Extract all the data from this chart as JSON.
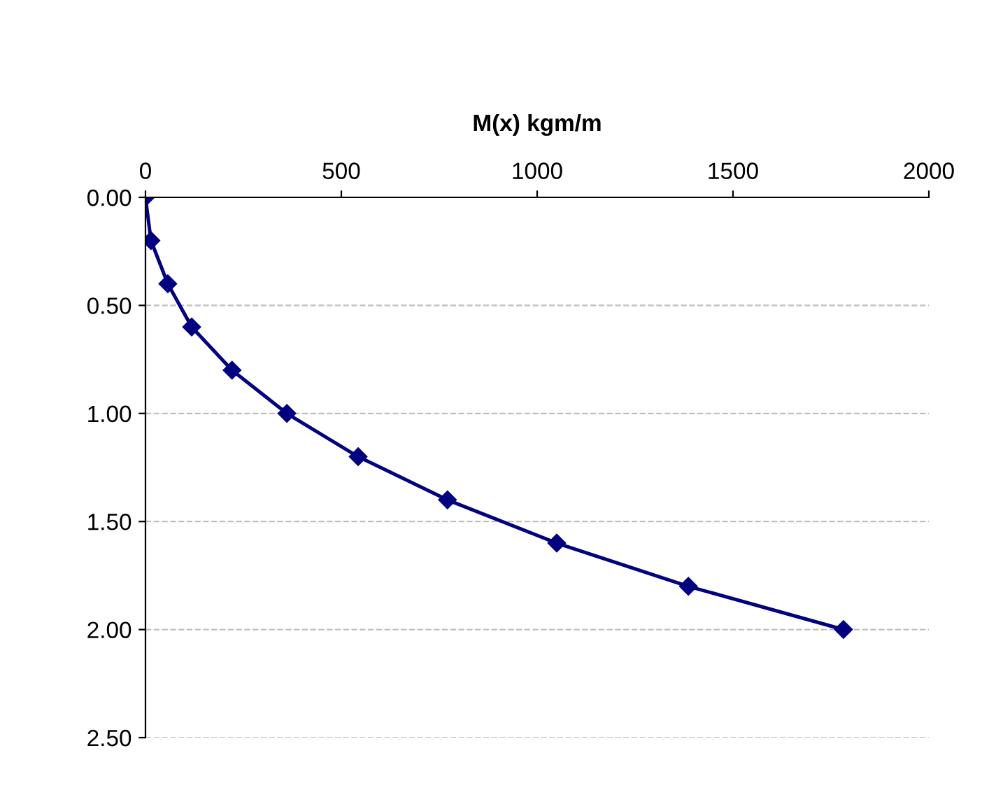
{
  "chart_data": {
    "type": "line",
    "xlabel": "M(x) kgm/m",
    "xlim": [
      0,
      2000
    ],
    "xticks": [
      0,
      500,
      1000,
      1500,
      2000
    ],
    "ylim": [
      2.5,
      0
    ],
    "yticks": [
      {
        "value": 0,
        "label": "0.00"
      },
      {
        "value": 0.5,
        "label": "0.50"
      },
      {
        "value": 1,
        "label": "1.00"
      },
      {
        "value": 1.5,
        "label": "1.50"
      },
      {
        "value": 2,
        "label": "2.00"
      },
      {
        "value": 2.5,
        "label": "2.50"
      }
    ],
    "grid": "y",
    "marker": "diamond",
    "line_style": "solid",
    "series": [
      {
        "color": "#000080",
        "x": [
          0,
          14,
          57,
          118,
          221,
          361,
          543,
          771,
          1050,
          1386,
          1782
        ],
        "values": [
          0,
          0.2,
          0.4,
          0.6,
          0.8,
          1.0,
          1.2,
          1.4,
          1.6,
          1.8,
          2.0
        ]
      }
    ]
  }
}
